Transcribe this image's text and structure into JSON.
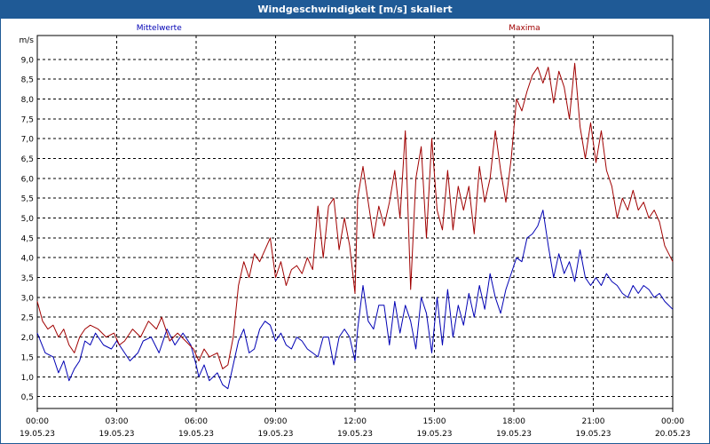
{
  "window": {
    "title": "Windgeschwindigkeit [m/s] skaliert"
  },
  "colors": {
    "mean": "#0000b4",
    "max": "#a00000",
    "grid": "#000000",
    "titlebar": "#1f5a96"
  },
  "chart_data": {
    "type": "line",
    "title": "Windgeschwindigkeit [m/s] skaliert",
    "ylabel": "m/s",
    "xlabel": "",
    "ylim": [
      0.2,
      9.6
    ],
    "xlim_hours": [
      0,
      24
    ],
    "yticks": [
      "0,5",
      "1,0",
      "1,5",
      "2,0",
      "2,5",
      "3,0",
      "3,5",
      "4,0",
      "4,5",
      "5,0",
      "5,5",
      "6,0",
      "6,5",
      "7,0",
      "7,5",
      "8,0",
      "8,5",
      "9,0"
    ],
    "ytick_values": [
      0.5,
      1.0,
      1.5,
      2.0,
      2.5,
      3.0,
      3.5,
      4.0,
      4.5,
      5.0,
      5.5,
      6.0,
      6.5,
      7.0,
      7.5,
      8.0,
      8.5,
      9.0
    ],
    "xticks": [
      {
        "time": "00:00",
        "date": "19.05.23"
      },
      {
        "time": "03:00",
        "date": "19.05.23"
      },
      {
        "time": "06:00",
        "date": "19.05.23"
      },
      {
        "time": "09:00",
        "date": "19.05.23"
      },
      {
        "time": "12:00",
        "date": "19.05.23"
      },
      {
        "time": "15:00",
        "date": "19.05.23"
      },
      {
        "time": "18:00",
        "date": "19.05.23"
      },
      {
        "time": "21:00",
        "date": "19.05.23"
      },
      {
        "time": "00:00",
        "date": "20.05.23"
      }
    ],
    "xtick_hours": [
      0,
      3,
      6,
      9,
      12,
      15,
      18,
      21,
      24
    ],
    "grid": true,
    "series": [
      {
        "name": "Mittelwerte",
        "color": "#0000b4",
        "values": [
          [
            0.0,
            2.1
          ],
          [
            0.3,
            1.6
          ],
          [
            0.6,
            1.5
          ],
          [
            0.8,
            1.1
          ],
          [
            1.0,
            1.4
          ],
          [
            1.2,
            0.9
          ],
          [
            1.4,
            1.2
          ],
          [
            1.6,
            1.4
          ],
          [
            1.8,
            1.9
          ],
          [
            2.0,
            1.8
          ],
          [
            2.2,
            2.1
          ],
          [
            2.5,
            1.8
          ],
          [
            2.8,
            1.7
          ],
          [
            3.0,
            1.9
          ],
          [
            3.3,
            1.6
          ],
          [
            3.5,
            1.4
          ],
          [
            3.8,
            1.6
          ],
          [
            4.0,
            1.9
          ],
          [
            4.3,
            2.0
          ],
          [
            4.6,
            1.6
          ],
          [
            4.9,
            2.2
          ],
          [
            5.2,
            1.8
          ],
          [
            5.5,
            2.1
          ],
          [
            5.8,
            1.8
          ],
          [
            6.0,
            1.3
          ],
          [
            6.1,
            1.0
          ],
          [
            6.3,
            1.3
          ],
          [
            6.5,
            0.9
          ],
          [
            6.8,
            1.1
          ],
          [
            7.0,
            0.8
          ],
          [
            7.2,
            0.7
          ],
          [
            7.4,
            1.3
          ],
          [
            7.6,
            1.9
          ],
          [
            7.8,
            2.2
          ],
          [
            8.0,
            1.6
          ],
          [
            8.2,
            1.7
          ],
          [
            8.4,
            2.2
          ],
          [
            8.6,
            2.4
          ],
          [
            8.8,
            2.3
          ],
          [
            9.0,
            1.9
          ],
          [
            9.2,
            2.1
          ],
          [
            9.4,
            1.8
          ],
          [
            9.6,
            1.7
          ],
          [
            9.8,
            2.0
          ],
          [
            10.0,
            1.9
          ],
          [
            10.2,
            1.7
          ],
          [
            10.4,
            1.6
          ],
          [
            10.6,
            1.5
          ],
          [
            10.8,
            2.0
          ],
          [
            11.0,
            2.0
          ],
          [
            11.2,
            1.3
          ],
          [
            11.4,
            2.0
          ],
          [
            11.6,
            2.2
          ],
          [
            11.8,
            2.0
          ],
          [
            12.0,
            1.4
          ],
          [
            12.1,
            2.2
          ],
          [
            12.3,
            3.3
          ],
          [
            12.5,
            2.4
          ],
          [
            12.7,
            2.2
          ],
          [
            12.9,
            2.8
          ],
          [
            13.1,
            2.8
          ],
          [
            13.3,
            1.8
          ],
          [
            13.5,
            2.9
          ],
          [
            13.7,
            2.1
          ],
          [
            13.9,
            2.8
          ],
          [
            14.1,
            2.4
          ],
          [
            14.3,
            1.7
          ],
          [
            14.5,
            3.0
          ],
          [
            14.7,
            2.6
          ],
          [
            14.9,
            1.6
          ],
          [
            15.1,
            3.0
          ],
          [
            15.3,
            1.8
          ],
          [
            15.5,
            3.2
          ],
          [
            15.7,
            2.0
          ],
          [
            15.9,
            2.8
          ],
          [
            16.1,
            2.3
          ],
          [
            16.3,
            3.1
          ],
          [
            16.5,
            2.5
          ],
          [
            16.7,
            3.3
          ],
          [
            16.9,
            2.7
          ],
          [
            17.1,
            3.6
          ],
          [
            17.3,
            3.0
          ],
          [
            17.5,
            2.6
          ],
          [
            17.7,
            3.2
          ],
          [
            17.9,
            3.6
          ],
          [
            18.1,
            4.0
          ],
          [
            18.3,
            3.9
          ],
          [
            18.5,
            4.5
          ],
          [
            18.7,
            4.6
          ],
          [
            18.9,
            4.8
          ],
          [
            19.1,
            5.2
          ],
          [
            19.3,
            4.3
          ],
          [
            19.5,
            3.5
          ],
          [
            19.7,
            4.1
          ],
          [
            19.9,
            3.6
          ],
          [
            20.1,
            3.9
          ],
          [
            20.3,
            3.4
          ],
          [
            20.5,
            4.2
          ],
          [
            20.7,
            3.5
          ],
          [
            20.9,
            3.3
          ],
          [
            21.1,
            3.5
          ],
          [
            21.3,
            3.3
          ],
          [
            21.5,
            3.6
          ],
          [
            21.7,
            3.4
          ],
          [
            21.9,
            3.3
          ],
          [
            22.1,
            3.1
          ],
          [
            22.3,
            3.0
          ],
          [
            22.5,
            3.3
          ],
          [
            22.7,
            3.1
          ],
          [
            22.9,
            3.3
          ],
          [
            23.1,
            3.2
          ],
          [
            23.3,
            3.0
          ],
          [
            23.5,
            3.1
          ],
          [
            23.7,
            2.9
          ],
          [
            24.0,
            2.7
          ]
        ]
      },
      {
        "name": "Maxima",
        "color": "#a00000",
        "values": [
          [
            0.0,
            2.9
          ],
          [
            0.2,
            2.4
          ],
          [
            0.4,
            2.2
          ],
          [
            0.6,
            2.3
          ],
          [
            0.8,
            2.0
          ],
          [
            1.0,
            2.2
          ],
          [
            1.2,
            1.8
          ],
          [
            1.4,
            1.6
          ],
          [
            1.6,
            2.0
          ],
          [
            1.8,
            2.2
          ],
          [
            2.0,
            2.3
          ],
          [
            2.3,
            2.2
          ],
          [
            2.6,
            2.0
          ],
          [
            2.9,
            2.1
          ],
          [
            3.1,
            1.8
          ],
          [
            3.3,
            1.9
          ],
          [
            3.6,
            2.2
          ],
          [
            3.9,
            2.0
          ],
          [
            4.2,
            2.4
          ],
          [
            4.5,
            2.2
          ],
          [
            4.7,
            2.5
          ],
          [
            5.0,
            1.9
          ],
          [
            5.3,
            2.1
          ],
          [
            5.6,
            1.9
          ],
          [
            5.9,
            1.7
          ],
          [
            6.1,
            1.4
          ],
          [
            6.3,
            1.7
          ],
          [
            6.5,
            1.5
          ],
          [
            6.8,
            1.6
          ],
          [
            7.0,
            1.2
          ],
          [
            7.2,
            1.3
          ],
          [
            7.4,
            2.0
          ],
          [
            7.6,
            3.3
          ],
          [
            7.8,
            3.9
          ],
          [
            8.0,
            3.5
          ],
          [
            8.2,
            4.1
          ],
          [
            8.4,
            3.9
          ],
          [
            8.6,
            4.2
          ],
          [
            8.8,
            4.5
          ],
          [
            9.0,
            3.5
          ],
          [
            9.2,
            3.9
          ],
          [
            9.4,
            3.3
          ],
          [
            9.6,
            3.7
          ],
          [
            9.8,
            3.8
          ],
          [
            10.0,
            3.6
          ],
          [
            10.2,
            4.0
          ],
          [
            10.4,
            3.7
          ],
          [
            10.6,
            5.3
          ],
          [
            10.8,
            4.0
          ],
          [
            11.0,
            5.3
          ],
          [
            11.2,
            5.5
          ],
          [
            11.4,
            4.2
          ],
          [
            11.6,
            5.0
          ],
          [
            11.8,
            4.3
          ],
          [
            12.0,
            3.1
          ],
          [
            12.1,
            5.5
          ],
          [
            12.3,
            6.3
          ],
          [
            12.5,
            5.4
          ],
          [
            12.7,
            4.5
          ],
          [
            12.9,
            5.3
          ],
          [
            13.1,
            4.8
          ],
          [
            13.3,
            5.4
          ],
          [
            13.5,
            6.2
          ],
          [
            13.7,
            5.0
          ],
          [
            13.9,
            7.2
          ],
          [
            14.1,
            3.2
          ],
          [
            14.3,
            6.0
          ],
          [
            14.5,
            6.8
          ],
          [
            14.7,
            4.5
          ],
          [
            14.9,
            7.0
          ],
          [
            15.1,
            5.2
          ],
          [
            15.3,
            4.7
          ],
          [
            15.5,
            6.2
          ],
          [
            15.7,
            4.7
          ],
          [
            15.9,
            5.8
          ],
          [
            16.1,
            5.2
          ],
          [
            16.3,
            5.8
          ],
          [
            16.5,
            4.6
          ],
          [
            16.7,
            6.3
          ],
          [
            16.9,
            5.4
          ],
          [
            17.1,
            6.0
          ],
          [
            17.3,
            7.2
          ],
          [
            17.5,
            6.2
          ],
          [
            17.7,
            5.4
          ],
          [
            17.9,
            6.5
          ],
          [
            18.1,
            8.0
          ],
          [
            18.3,
            7.7
          ],
          [
            18.5,
            8.2
          ],
          [
            18.7,
            8.6
          ],
          [
            18.9,
            8.8
          ],
          [
            19.1,
            8.4
          ],
          [
            19.3,
            8.8
          ],
          [
            19.5,
            7.9
          ],
          [
            19.7,
            8.7
          ],
          [
            19.9,
            8.3
          ],
          [
            20.1,
            7.5
          ],
          [
            20.3,
            8.9
          ],
          [
            20.5,
            7.3
          ],
          [
            20.7,
            6.5
          ],
          [
            20.9,
            7.4
          ],
          [
            21.1,
            6.4
          ],
          [
            21.3,
            7.2
          ],
          [
            21.5,
            6.2
          ],
          [
            21.7,
            5.8
          ],
          [
            21.9,
            5.0
          ],
          [
            22.1,
            5.5
          ],
          [
            22.3,
            5.2
          ],
          [
            22.5,
            5.7
          ],
          [
            22.7,
            5.2
          ],
          [
            22.9,
            5.4
          ],
          [
            23.1,
            5.0
          ],
          [
            23.3,
            5.2
          ],
          [
            23.5,
            4.9
          ],
          [
            23.7,
            4.3
          ],
          [
            24.0,
            3.9
          ]
        ]
      }
    ]
  }
}
